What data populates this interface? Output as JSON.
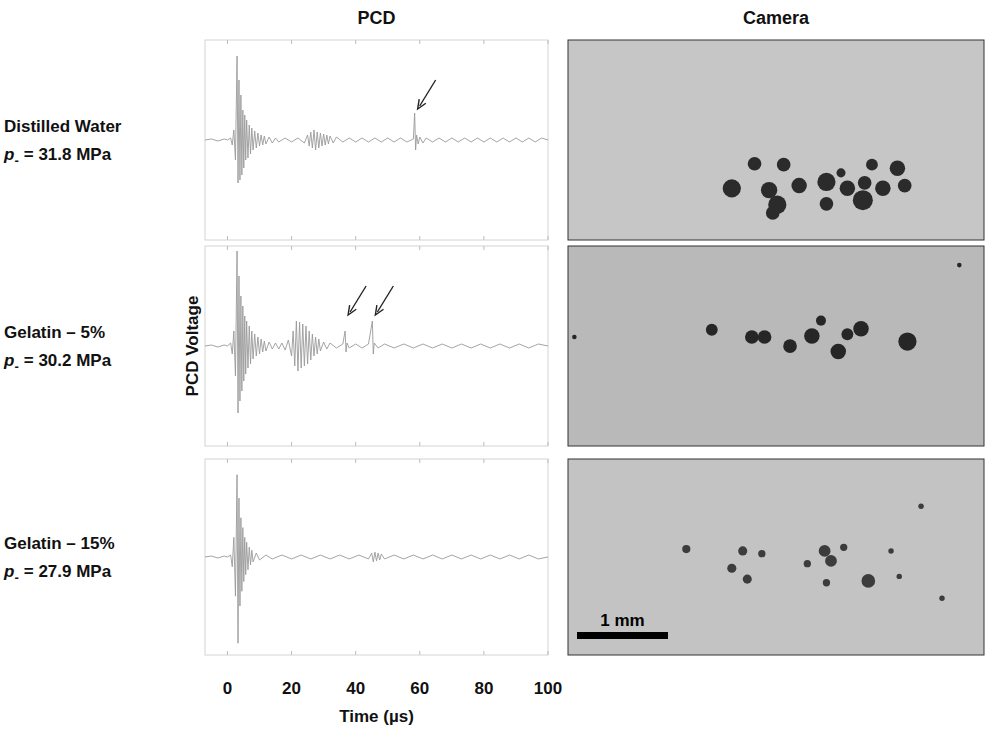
{
  "columns": [
    "PCD",
    "Camera"
  ],
  "chart_data": [
    {
      "type": "line",
      "row_label": {
        "sample": "Distilled Water",
        "symbol": "p",
        "subscript": "-",
        "value": "= 31.8 MPa"
      },
      "xlim": [
        -7,
        100
      ],
      "ylim": [
        -1,
        1
      ],
      "xticks": [
        0,
        20,
        40,
        60,
        80,
        100
      ],
      "tick_labels": false,
      "grid": false,
      "arrow_x": [
        58.4
      ],
      "x": [
        -7,
        -5,
        -3,
        -1,
        0,
        1,
        1.5,
        2,
        2.5,
        3,
        3.3,
        3.6,
        3.9,
        4.2,
        4.5,
        4.8,
        5.1,
        5.4,
        5.7,
        6,
        6.4,
        6.8,
        7.2,
        7.6,
        8,
        8.5,
        9,
        9.5,
        10,
        10.5,
        11,
        11.5,
        12,
        13,
        14,
        15,
        16,
        18,
        20,
        22,
        24,
        25,
        25.5,
        26,
        26.5,
        27,
        27.5,
        28,
        28.5,
        29,
        29.5,
        30,
        30.5,
        31,
        31.5,
        32,
        33,
        34,
        36,
        38,
        40,
        42,
        44,
        46,
        48,
        50,
        52,
        54,
        56,
        58,
        58.4,
        58.7,
        59,
        59.5,
        60,
        61,
        62,
        64,
        66,
        68,
        70,
        72,
        74,
        76,
        78,
        80,
        82,
        84,
        86,
        88,
        90,
        92,
        94,
        96,
        98,
        100
      ],
      "series": [
        {
          "name": "Distilled Water",
          "color": "#9a9a9a",
          "values": [
            0,
            0.01,
            -0.01,
            0.01,
            0,
            0.02,
            -0.05,
            0.1,
            -0.2,
            0.84,
            -0.43,
            0.6,
            -0.4,
            0.45,
            -0.35,
            0.3,
            -0.28,
            0.25,
            -0.2,
            0.2,
            -0.18,
            0.15,
            -0.14,
            0.12,
            -0.1,
            0.09,
            -0.08,
            0.07,
            -0.06,
            0.05,
            -0.05,
            0.04,
            -0.04,
            0.03,
            -0.03,
            0.02,
            -0.02,
            0.02,
            -0.02,
            0.02,
            -0.03,
            0.05,
            -0.06,
            0.08,
            -0.08,
            0.1,
            -0.1,
            0.08,
            -0.08,
            0.07,
            -0.06,
            0.06,
            -0.05,
            0.05,
            -0.04,
            0.04,
            -0.03,
            0.03,
            -0.02,
            0.02,
            -0.02,
            0.02,
            -0.02,
            0.02,
            -0.02,
            0.02,
            -0.02,
            0.02,
            -0.02,
            0.01,
            0.27,
            -0.1,
            0.05,
            -0.04,
            0.03,
            -0.03,
            0.02,
            -0.02,
            0.02,
            -0.02,
            0.02,
            -0.02,
            0.02,
            -0.02,
            0.02,
            -0.02,
            0.02,
            -0.02,
            0.02,
            -0.02,
            0.02,
            -0.02,
            0.02,
            -0.02,
            0.02,
            0
          ]
        }
      ]
    },
    {
      "type": "line",
      "row_label": {
        "sample": "Gelatin – 5%",
        "symbol": "p",
        "subscript": "-",
        "value": "= 30.2 MPa"
      },
      "ylabel": "PCD Voltage",
      "xlim": [
        -7,
        100
      ],
      "ylim": [
        -1,
        1
      ],
      "xticks": [
        0,
        20,
        40,
        60,
        80,
        100
      ],
      "tick_labels": false,
      "grid": false,
      "arrow_x": [
        36.7,
        45.2
      ],
      "x": [
        -7,
        -5,
        -3,
        -1,
        0,
        1,
        1.5,
        2,
        2.5,
        3,
        3.3,
        3.6,
        3.9,
        4.2,
        4.5,
        4.8,
        5.1,
        5.4,
        5.7,
        6,
        6.4,
        6.8,
        7.2,
        7.6,
        8,
        8.5,
        9,
        9.5,
        10,
        10.5,
        11,
        11.5,
        12,
        13,
        14,
        15,
        16,
        17,
        18,
        19,
        20,
        20.5,
        21,
        21.5,
        22,
        22.5,
        23,
        23.5,
        24,
        24.5,
        25,
        25.5,
        26,
        26.5,
        27,
        27.5,
        28,
        28.5,
        29,
        30,
        31,
        32,
        34,
        36,
        36.7,
        37,
        37.3,
        38,
        40,
        42,
        44,
        45.2,
        45.5,
        45.8,
        47,
        49,
        52,
        55,
        58,
        61,
        64,
        67,
        70,
        73,
        76,
        79,
        82,
        85,
        88,
        91,
        94,
        97,
        100
      ],
      "series": [
        {
          "name": "Gelatin – 5%",
          "color": "#9a9a9a",
          "values": [
            0,
            0.01,
            -0.01,
            0.01,
            0,
            0.03,
            -0.08,
            0.15,
            -0.3,
            0.95,
            -0.67,
            0.7,
            -0.55,
            0.5,
            -0.45,
            0.4,
            -0.35,
            0.3,
            -0.28,
            0.25,
            -0.22,
            0.2,
            -0.18,
            0.15,
            -0.13,
            0.12,
            -0.1,
            0.09,
            -0.08,
            0.07,
            -0.06,
            0.05,
            -0.05,
            0.04,
            -0.03,
            0.03,
            -0.03,
            0.03,
            -0.04,
            0.06,
            -0.1,
            0.15,
            -0.2,
            0.25,
            -0.25,
            0.24,
            -0.22,
            0.22,
            -0.2,
            0.2,
            -0.18,
            0.15,
            -0.14,
            0.12,
            -0.1,
            0.09,
            -0.08,
            0.07,
            -0.05,
            0.04,
            -0.03,
            0.03,
            -0.02,
            0.02,
            0.15,
            -0.06,
            0.03,
            -0.02,
            0.02,
            -0.02,
            0.02,
            0.25,
            -0.08,
            0.03,
            -0.02,
            0.02,
            -0.02,
            0.02,
            -0.02,
            0.02,
            -0.02,
            0.02,
            -0.02,
            0.02,
            -0.02,
            0.02,
            -0.02,
            0.02,
            -0.02,
            0.02,
            -0.02,
            0.02,
            0
          ]
        }
      ]
    },
    {
      "type": "line",
      "row_label": {
        "sample": "Gelatin – 15%",
        "symbol": "p",
        "subscript": "-",
        "value": "= 27.9 MPa"
      },
      "xlabel": "Time (µs)",
      "xlim": [
        -7,
        100
      ],
      "ylim": [
        -1,
        1
      ],
      "xticks": [
        0,
        20,
        40,
        60,
        80,
        100
      ],
      "tick_labels": "x",
      "grid": false,
      "x": [
        -7,
        -5,
        -3,
        -1,
        0,
        1,
        1.5,
        2,
        2.5,
        3,
        3.3,
        3.6,
        3.9,
        4.2,
        4.5,
        4.8,
        5.1,
        5.4,
        5.7,
        6,
        6.4,
        6.8,
        7.2,
        7.6,
        8,
        9,
        10,
        12,
        14,
        17,
        20,
        23,
        26,
        29,
        32,
        35,
        38,
        41,
        44,
        45,
        45.5,
        46,
        46.5,
        47,
        47.5,
        48,
        49,
        52,
        55,
        58,
        61,
        64,
        67,
        70,
        73,
        76,
        79,
        82,
        85,
        88,
        91,
        94,
        97,
        100
      ],
      "series": [
        {
          "name": "Gelatin – 15%",
          "color": "#9a9a9a",
          "values": [
            0,
            0.01,
            -0.01,
            0.01,
            0,
            0.02,
            -0.1,
            0.2,
            -0.4,
            0.84,
            -0.88,
            0.6,
            -0.5,
            0.4,
            -0.35,
            0.3,
            -0.25,
            0.2,
            -0.18,
            0.15,
            -0.13,
            0.1,
            -0.08,
            0.07,
            -0.05,
            0.04,
            -0.03,
            0.02,
            -0.02,
            0.02,
            -0.02,
            0.02,
            -0.02,
            0.02,
            -0.02,
            0.02,
            -0.02,
            0.02,
            -0.02,
            0.04,
            -0.05,
            0.05,
            -0.04,
            0.04,
            -0.03,
            0.03,
            -0.02,
            0.02,
            -0.02,
            0.02,
            -0.02,
            0.02,
            -0.02,
            0.02,
            -0.02,
            0.02,
            -0.02,
            0.02,
            -0.02,
            0.02,
            -0.02,
            0.02,
            -0.02,
            0
          ]
        }
      ]
    }
  ],
  "camera_panels": [
    {
      "color": "#c6c6c6",
      "bubble_color": "#2b2b2b",
      "bubbles": [
        {
          "x": 1.8,
          "y": 1.63,
          "d": 0.2
        },
        {
          "x": 2.05,
          "y": 1.36,
          "d": 0.15
        },
        {
          "x": 2.37,
          "y": 1.37,
          "d": 0.15
        },
        {
          "x": 2.21,
          "y": 1.65,
          "d": 0.18
        },
        {
          "x": 2.3,
          "y": 1.81,
          "d": 0.2
        },
        {
          "x": 2.84,
          "y": 1.56,
          "d": 0.2
        },
        {
          "x": 2.54,
          "y": 1.6,
          "d": 0.17
        },
        {
          "x": 2.84,
          "y": 1.8,
          "d": 0.15
        },
        {
          "x": 3.07,
          "y": 1.63,
          "d": 0.17
        },
        {
          "x": 3.26,
          "y": 1.57,
          "d": 0.15
        },
        {
          "x": 3.34,
          "y": 1.37,
          "d": 0.13
        },
        {
          "x": 3.24,
          "y": 1.76,
          "d": 0.22
        },
        {
          "x": 3.46,
          "y": 1.63,
          "d": 0.17
        },
        {
          "x": 3.62,
          "y": 1.41,
          "d": 0.17
        },
        {
          "x": 3.7,
          "y": 1.6,
          "d": 0.15
        },
        {
          "x": 2.25,
          "y": 1.9,
          "d": 0.15
        },
        {
          "x": 3.0,
          "y": 1.46,
          "d": 0.1
        }
      ]
    },
    {
      "color": "#b9b9b9",
      "bubble_color": "#262626",
      "bubbles": [
        {
          "x": 1.58,
          "y": 0.92,
          "d": 0.13
        },
        {
          "x": 2.02,
          "y": 1.0,
          "d": 0.15
        },
        {
          "x": 2.16,
          "y": 1.0,
          "d": 0.15
        },
        {
          "x": 2.44,
          "y": 1.1,
          "d": 0.15
        },
        {
          "x": 2.68,
          "y": 0.99,
          "d": 0.17
        },
        {
          "x": 2.78,
          "y": 0.82,
          "d": 0.11
        },
        {
          "x": 2.97,
          "y": 1.16,
          "d": 0.17
        },
        {
          "x": 3.07,
          "y": 0.97,
          "d": 0.13
        },
        {
          "x": 3.22,
          "y": 0.91,
          "d": 0.17
        },
        {
          "x": 3.73,
          "y": 1.05,
          "d": 0.2
        },
        {
          "x": 0.07,
          "y": 1.0,
          "d": 0.05
        },
        {
          "x": 4.3,
          "y": 0.21,
          "d": 0.05
        }
      ]
    },
    {
      "color": "#c3c3c3",
      "bubble_color": "#3c3c3c",
      "bubbles": [
        {
          "x": 1.3,
          "y": 0.99,
          "d": 0.09
        },
        {
          "x": 1.8,
          "y": 1.2,
          "d": 0.1
        },
        {
          "x": 1.92,
          "y": 1.01,
          "d": 0.1
        },
        {
          "x": 2.13,
          "y": 1.04,
          "d": 0.08
        },
        {
          "x": 1.97,
          "y": 1.32,
          "d": 0.1
        },
        {
          "x": 2.63,
          "y": 1.15,
          "d": 0.08
        },
        {
          "x": 2.82,
          "y": 1.01,
          "d": 0.13
        },
        {
          "x": 2.89,
          "y": 1.12,
          "d": 0.13
        },
        {
          "x": 3.03,
          "y": 0.97,
          "d": 0.08
        },
        {
          "x": 2.84,
          "y": 1.36,
          "d": 0.08
        },
        {
          "x": 3.3,
          "y": 1.34,
          "d": 0.15
        },
        {
          "x": 3.64,
          "y": 1.29,
          "d": 0.06
        },
        {
          "x": 3.88,
          "y": 0.52,
          "d": 0.06
        },
        {
          "x": 3.55,
          "y": 1.01,
          "d": 0.06
        },
        {
          "x": 4.11,
          "y": 1.53,
          "d": 0.06
        }
      ],
      "scale_bar": {
        "length_mm": 1,
        "label": "1 mm"
      }
    }
  ]
}
